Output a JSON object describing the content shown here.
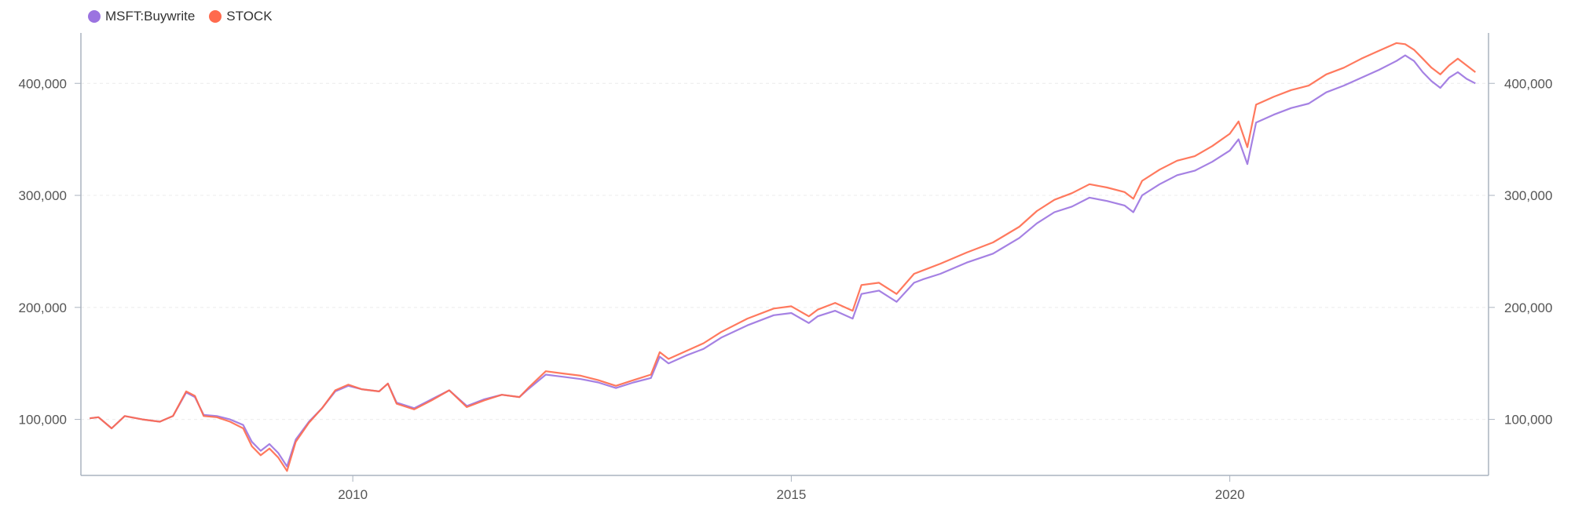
{
  "legend": {
    "items": [
      {
        "label": "MSFT:Buywrite",
        "color": "#9B73E0"
      },
      {
        "label": "STOCK",
        "color": "#FF6A4D"
      }
    ]
  },
  "chart_data": {
    "type": "line",
    "grid": true,
    "legend_position": "top-left",
    "x_range": [
      2006.9,
      2022.95
    ],
    "y_range": [
      50000,
      445000
    ],
    "x_ticks": [
      2010,
      2015,
      2020
    ],
    "x_tick_labels": [
      "2010",
      "2015",
      "2020"
    ],
    "y_ticks": [
      100000,
      200000,
      300000,
      400000
    ],
    "y_tick_labels_left": [
      "100,000",
      "200,000",
      "300,000",
      "400,000"
    ],
    "y_tick_labels_right": [
      "100,000",
      "200,000",
      "300,000",
      "400,000"
    ],
    "series": [
      {
        "name": "MSFT:Buywrite",
        "color": "#9B73E0",
        "x": [
          2007.0,
          2007.1,
          2007.25,
          2007.4,
          2007.6,
          2007.8,
          2007.95,
          2008.1,
          2008.2,
          2008.3,
          2008.45,
          2008.6,
          2008.75,
          2008.85,
          2008.95,
          2009.05,
          2009.15,
          2009.25,
          2009.35,
          2009.5,
          2009.65,
          2009.8,
          2009.95,
          2010.1,
          2010.3,
          2010.4,
          2010.5,
          2010.7,
          2010.9,
          2011.1,
          2011.3,
          2011.5,
          2011.7,
          2011.9,
          2012.0,
          2012.2,
          2012.4,
          2012.6,
          2012.8,
          2013.0,
          2013.2,
          2013.4,
          2013.5,
          2013.6,
          2013.8,
          2014.0,
          2014.2,
          2014.5,
          2014.8,
          2015.0,
          2015.2,
          2015.3,
          2015.5,
          2015.7,
          2015.8,
          2016.0,
          2016.2,
          2016.4,
          2016.5,
          2016.7,
          2017.0,
          2017.3,
          2017.6,
          2017.8,
          2018.0,
          2018.2,
          2018.4,
          2018.6,
          2018.8,
          2018.9,
          2019.0,
          2019.2,
          2019.4,
          2019.6,
          2019.8,
          2020.0,
          2020.1,
          2020.2,
          2020.3,
          2020.5,
          2020.7,
          2020.9,
          2021.1,
          2021.3,
          2021.5,
          2021.7,
          2021.9,
          2022.0,
          2022.1,
          2022.2,
          2022.3,
          2022.4,
          2022.5,
          2022.6,
          2022.7,
          2022.8
        ],
        "values": [
          101000,
          102000,
          92000,
          103000,
          100000,
          98000,
          103000,
          124000,
          120000,
          104000,
          103000,
          100000,
          95000,
          80000,
          72000,
          78000,
          70000,
          58000,
          82000,
          98000,
          110000,
          125000,
          130000,
          127000,
          125000,
          132000,
          115000,
          110000,
          118000,
          126000,
          112000,
          118000,
          122000,
          120000,
          127000,
          140000,
          138000,
          136000,
          133000,
          128000,
          133000,
          137000,
          156000,
          150000,
          157000,
          163000,
          173000,
          184000,
          193000,
          195000,
          186000,
          192000,
          197000,
          190000,
          212000,
          215000,
          205000,
          222000,
          225000,
          230000,
          240000,
          248000,
          262000,
          275000,
          285000,
          290000,
          298000,
          295000,
          291000,
          285000,
          300000,
          310000,
          318000,
          322000,
          330000,
          340000,
          350000,
          328000,
          365000,
          372000,
          378000,
          382000,
          392000,
          398000,
          405000,
          412000,
          420000,
          425000,
          420000,
          410000,
          402000,
          396000,
          405000,
          410000,
          404000,
          400000
        ]
      },
      {
        "name": "STOCK",
        "color": "#FF6A4D",
        "x": [
          2007.0,
          2007.1,
          2007.25,
          2007.4,
          2007.6,
          2007.8,
          2007.95,
          2008.1,
          2008.2,
          2008.3,
          2008.45,
          2008.6,
          2008.75,
          2008.85,
          2008.95,
          2009.05,
          2009.15,
          2009.25,
          2009.35,
          2009.5,
          2009.65,
          2009.8,
          2009.95,
          2010.1,
          2010.3,
          2010.4,
          2010.5,
          2010.7,
          2010.9,
          2011.1,
          2011.3,
          2011.5,
          2011.7,
          2011.9,
          2012.0,
          2012.2,
          2012.4,
          2012.6,
          2012.8,
          2013.0,
          2013.2,
          2013.4,
          2013.5,
          2013.6,
          2013.8,
          2014.0,
          2014.2,
          2014.5,
          2014.8,
          2015.0,
          2015.2,
          2015.3,
          2015.5,
          2015.7,
          2015.8,
          2016.0,
          2016.2,
          2016.4,
          2016.5,
          2016.7,
          2017.0,
          2017.3,
          2017.6,
          2017.8,
          2018.0,
          2018.2,
          2018.4,
          2018.6,
          2018.8,
          2018.9,
          2019.0,
          2019.2,
          2019.4,
          2019.6,
          2019.8,
          2020.0,
          2020.1,
          2020.2,
          2020.3,
          2020.5,
          2020.7,
          2020.9,
          2021.1,
          2021.3,
          2021.5,
          2021.7,
          2021.9,
          2022.0,
          2022.1,
          2022.2,
          2022.3,
          2022.4,
          2022.5,
          2022.6,
          2022.7,
          2022.8
        ],
        "values": [
          101000,
          102000,
          92000,
          103000,
          100000,
          98000,
          103000,
          125000,
          121000,
          103000,
          102000,
          98000,
          92000,
          76000,
          68000,
          74000,
          66000,
          54000,
          80000,
          97000,
          110000,
          126000,
          131000,
          127000,
          125000,
          132000,
          114000,
          109000,
          117000,
          126000,
          111000,
          117000,
          122000,
          120000,
          128000,
          143000,
          141000,
          139000,
          135000,
          130000,
          135000,
          140000,
          160000,
          154000,
          161000,
          168000,
          178000,
          190000,
          199000,
          201000,
          192000,
          198000,
          204000,
          197000,
          220000,
          222000,
          212000,
          230000,
          233000,
          239000,
          249000,
          258000,
          272000,
          286000,
          296000,
          302000,
          310000,
          307000,
          303000,
          297000,
          313000,
          323000,
          331000,
          335000,
          344000,
          355000,
          366000,
          343000,
          381000,
          388000,
          394000,
          398000,
          408000,
          414000,
          422000,
          429000,
          436000,
          435000,
          430000,
          422000,
          414000,
          408000,
          416000,
          422000,
          416000,
          410000
        ]
      }
    ]
  }
}
